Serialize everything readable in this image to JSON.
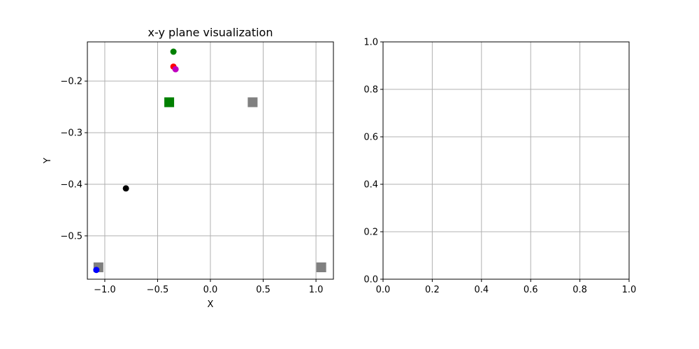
{
  "chart_data": [
    {
      "type": "scatter",
      "title": "x-y plane visualization",
      "xlabel": "X",
      "ylabel": "Y",
      "xlim": [
        -1.165,
        1.165
      ],
      "ylim": [
        -0.584,
        -0.124
      ],
      "grid": true,
      "xticks": [
        -1.0,
        -0.5,
        0.0,
        0.5,
        1.0
      ],
      "yticks": [
        -0.2,
        -0.3,
        -0.4,
        -0.5
      ],
      "xtick_labels": [
        "−1.0",
        "−0.5",
        "0.0",
        "0.5",
        "1.0"
      ],
      "ytick_labels": [
        "−0.2",
        "−0.3",
        "−0.4",
        "−0.5"
      ],
      "squares": [
        {
          "x": -0.39,
          "y": -0.241,
          "color": "#008000"
        },
        {
          "x": 0.4,
          "y": -0.241,
          "color": "#808080"
        },
        {
          "x": -1.06,
          "y": -0.561,
          "color": "#808080"
        },
        {
          "x": 1.05,
          "y": -0.561,
          "color": "#808080"
        }
      ],
      "points": [
        {
          "x": -0.35,
          "y": -0.143,
          "color": "#008000"
        },
        {
          "x": -0.35,
          "y": -0.172,
          "color": "#ff0000"
        },
        {
          "x": -0.33,
          "y": -0.177,
          "color": "#bf00bf"
        },
        {
          "x": -0.8,
          "y": -0.408,
          "color": "#000000"
        },
        {
          "x": -1.08,
          "y": -0.566,
          "color": "#0000ff"
        }
      ]
    },
    {
      "type": "line",
      "title": "",
      "xlabel": "",
      "ylabel": "",
      "xlim": [
        0,
        1
      ],
      "ylim": [
        0,
        1
      ],
      "grid": true,
      "xticks": [
        0.0,
        0.2,
        0.4,
        0.6,
        0.8,
        1.0
      ],
      "yticks": [
        0.0,
        0.2,
        0.4,
        0.6,
        0.8,
        1.0
      ],
      "xtick_labels": [
        "0.0",
        "0.2",
        "0.4",
        "0.6",
        "0.8",
        "1.0"
      ],
      "ytick_labels": [
        "0.0",
        "0.2",
        "0.4",
        "0.6",
        "0.8",
        "1.0"
      ],
      "series": []
    }
  ]
}
